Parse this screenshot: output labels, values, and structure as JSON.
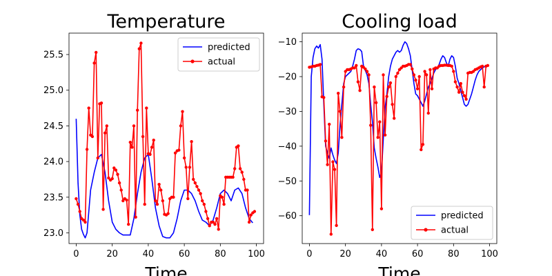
{
  "figure": {
    "background": "#ffffff"
  },
  "chart_data": [
    {
      "type": "line",
      "title": "Temperature",
      "xlabel": "Time",
      "ylabel": "",
      "xlim": [
        -4,
        104
      ],
      "ylim": [
        22.85,
        25.8
      ],
      "xticks": [
        0,
        20,
        40,
        60,
        80,
        100
      ],
      "yticks": [
        23.0,
        23.5,
        24.0,
        24.5,
        25.0,
        25.5
      ],
      "ytick_labels": [
        "23.0",
        "23.5",
        "24.0",
        "24.5",
        "25.0",
        "25.5"
      ],
      "legend": {
        "location": "upper right"
      },
      "series": [
        {
          "name": "predicted",
          "color": "#0000ff",
          "marker": "none",
          "x": [
            0,
            1,
            2,
            3,
            4,
            5,
            6,
            7,
            8,
            10,
            12,
            14,
            16,
            18,
            20,
            22,
            24,
            26,
            28,
            30,
            32,
            34,
            36,
            38,
            40,
            42,
            44,
            46,
            48,
            50,
            52,
            54,
            56,
            58,
            60,
            62,
            64,
            66,
            68,
            70,
            72,
            74,
            76,
            78,
            80,
            82,
            84,
            86,
            88,
            90,
            92,
            94,
            96,
            98
          ],
          "y": [
            24.6,
            23.7,
            23.25,
            23.05,
            22.98,
            22.93,
            23.0,
            23.3,
            23.6,
            23.85,
            24.05,
            24.1,
            23.85,
            23.45,
            23.15,
            23.05,
            23.0,
            22.97,
            22.97,
            22.97,
            23.2,
            23.55,
            23.85,
            24.05,
            24.1,
            23.75,
            23.35,
            23.1,
            22.95,
            22.93,
            22.93,
            23.0,
            23.2,
            23.45,
            23.6,
            23.6,
            23.55,
            23.45,
            23.3,
            23.18,
            23.15,
            23.1,
            23.18,
            23.35,
            23.55,
            23.6,
            23.55,
            23.45,
            23.6,
            23.63,
            23.55,
            23.35,
            23.2,
            23.14
          ]
        },
        {
          "name": "actual",
          "color": "#ff0000",
          "marker": "o",
          "x": [
            0,
            1,
            2,
            3,
            4,
            5,
            6,
            7,
            8,
            9,
            10,
            11,
            12,
            13,
            14,
            15,
            16,
            17,
            18,
            19,
            20,
            21,
            22,
            23,
            24,
            25,
            26,
            27,
            28,
            29,
            30,
            31,
            32,
            33,
            34,
            35,
            36,
            37,
            38,
            39,
            40,
            41,
            42,
            43,
            44,
            45,
            46,
            47,
            48,
            49,
            50,
            51,
            52,
            53,
            54,
            55,
            56,
            57,
            58,
            59,
            60,
            61,
            62,
            63,
            64,
            65,
            66,
            67,
            68,
            69,
            70,
            71,
            72,
            73,
            74,
            75,
            76,
            77,
            78,
            79,
            80,
            81,
            82,
            83,
            84,
            85,
            86,
            87,
            88,
            89,
            90,
            91,
            92,
            93,
            94,
            95,
            96,
            97,
            98,
            99
          ],
          "y": [
            23.48,
            23.4,
            23.3,
            23.2,
            23.18,
            23.15,
            24.17,
            24.75,
            24.37,
            24.35,
            25.38,
            25.53,
            24.05,
            24.81,
            24.82,
            23.33,
            24.4,
            24.5,
            23.77,
            23.74,
            23.76,
            23.91,
            23.88,
            23.82,
            23.7,
            23.6,
            23.45,
            23.48,
            23.46,
            23.12,
            24.27,
            24.2,
            24.5,
            23.22,
            24.72,
            25.58,
            25.66,
            24.35,
            23.4,
            24.75,
            24.11,
            24.1,
            24.2,
            24.3,
            23.45,
            23.4,
            23.68,
            23.6,
            23.45,
            23.26,
            23.25,
            23.27,
            23.48,
            23.5,
            23.5,
            24.12,
            24.15,
            24.16,
            24.5,
            24.7,
            24.05,
            23.92,
            23.48,
            23.92,
            24.28,
            23.75,
            23.7,
            23.65,
            23.6,
            23.55,
            23.45,
            23.4,
            23.3,
            23.2,
            23.1,
            23.15,
            23.15,
            23.12,
            23.2,
            23.05,
            23.52,
            23.5,
            23.4,
            23.78,
            23.78,
            23.78,
            23.78,
            23.78,
            23.9,
            24.2,
            24.22,
            23.9,
            23.85,
            23.75,
            23.6,
            23.6,
            23.15,
            23.25,
            23.28,
            23.3
          ]
        }
      ]
    },
    {
      "type": "line",
      "title": "Cooling load",
      "xlabel": "Time",
      "ylabel": "",
      "xlim": [
        -4,
        104
      ],
      "ylim": [
        -68,
        -7.5
      ],
      "xticks": [
        0,
        20,
        40,
        60,
        80,
        100
      ],
      "yticks": [
        -60,
        -50,
        -40,
        -30,
        -20,
        -10
      ],
      "ytick_labels": [
        "−60",
        "−50",
        "−40",
        "−30",
        "−20",
        "−10"
      ],
      "legend": {
        "location": "lower right"
      },
      "series": [
        {
          "name": "predicted",
          "color": "#0000ff",
          "marker": "none",
          "x": [
            0,
            1,
            2,
            3,
            4,
            5,
            6,
            7,
            8,
            9,
            10,
            11,
            12,
            13,
            14,
            15,
            16,
            17,
            18,
            19,
            20,
            21,
            22,
            23,
            24,
            25,
            26,
            27,
            28,
            29,
            30,
            31,
            32,
            33,
            34,
            35,
            36,
            37,
            38,
            39,
            40,
            41,
            42,
            43,
            44,
            45,
            46,
            47,
            48,
            49,
            50,
            51,
            52,
            53,
            54,
            55,
            56,
            57,
            58,
            59,
            60,
            61,
            62,
            63,
            64,
            65,
            66,
            67,
            68,
            69,
            70,
            71,
            72,
            73,
            74,
            75,
            76,
            77,
            78,
            79,
            80,
            81,
            82,
            83,
            84,
            85,
            86,
            87,
            88,
            89,
            90,
            91,
            92,
            93,
            94,
            95,
            96,
            97,
            98,
            99
          ],
          "y": [
            -59.8,
            -20.0,
            -14.5,
            -12.0,
            -11.2,
            -11.8,
            -10.8,
            -15.0,
            -28.0,
            -40.0,
            -42.0,
            -43.5,
            -40.5,
            -42.5,
            -44.0,
            -45.0,
            -42.0,
            -34.0,
            -28.0,
            -22.0,
            -20.0,
            -19.5,
            -19.0,
            -18.5,
            -17.0,
            -15.0,
            -12.5,
            -12.0,
            -12.2,
            -12.8,
            -17.0,
            -18.2,
            -19.5,
            -22.0,
            -28.0,
            -33.0,
            -40.5,
            -43.5,
            -46.0,
            -49.0,
            -47.5,
            -38.0,
            -29.0,
            -25.0,
            -20.0,
            -17.0,
            -15.0,
            -14.0,
            -13.0,
            -12.5,
            -13.0,
            -12.5,
            -11.0,
            -10.0,
            -10.5,
            -12.0,
            -14.0,
            -18.0,
            -22.0,
            -25.0,
            -25.5,
            -26.5,
            -27.5,
            -28.5,
            -27.0,
            -25.0,
            -23.0,
            -22.0,
            -20.5,
            -19.0,
            -18.0,
            -17.5,
            -16.5,
            -15.0,
            -14.0,
            -14.5,
            -16.0,
            -17.0,
            -15.0,
            -14.0,
            -14.5,
            -17.0,
            -20.5,
            -22.0,
            -24.0,
            -26.0,
            -28.0,
            -28.5,
            -28.0,
            -26.5,
            -25.0,
            -23.0,
            -21.0,
            -19.5,
            -18.5,
            -18.0,
            -17.5,
            -17.2,
            -17.0,
            -17.0
          ]
        },
        {
          "name": "actual",
          "color": "#ff0000",
          "marker": "o",
          "x": [
            0,
            1,
            2,
            3,
            4,
            5,
            6,
            7,
            8,
            9,
            10,
            11,
            12,
            13,
            14,
            15,
            16,
            17,
            18,
            19,
            20,
            21,
            22,
            23,
            24,
            25,
            26,
            27,
            28,
            29,
            30,
            31,
            32,
            33,
            34,
            35,
            36,
            37,
            38,
            39,
            40,
            41,
            42,
            43,
            44,
            45,
            46,
            47,
            48,
            49,
            50,
            51,
            52,
            53,
            54,
            55,
            56,
            57,
            58,
            59,
            60,
            61,
            62,
            63,
            64,
            65,
            66,
            67,
            68,
            69,
            70,
            71,
            72,
            73,
            74,
            75,
            76,
            77,
            78,
            79,
            80,
            81,
            82,
            83,
            84,
            85,
            86,
            87,
            88,
            89,
            90,
            91,
            92,
            93,
            94,
            95,
            96,
            97,
            98,
            99
          ],
          "y": [
            -17.3,
            -17.2,
            -17.0,
            -17.0,
            -16.8,
            -16.7,
            -16.5,
            -25.8,
            -26.0,
            -38.5,
            -45.3,
            -33.7,
            -65.3,
            -44.5,
            -46.7,
            -62.8,
            -24.8,
            -30.0,
            -37.5,
            -23.0,
            -18.5,
            -18.0,
            -18.0,
            -17.8,
            -17.5,
            -17.5,
            -16.8,
            -21.5,
            -24.0,
            -17.0,
            -17.3,
            -17.8,
            -18.5,
            -19.5,
            -34.0,
            -64.0,
            -23.0,
            -27.5,
            -37.5,
            -33.0,
            -58.0,
            -19.5,
            -36.8,
            -25.7,
            -23.0,
            -21.8,
            -28.0,
            -32.0,
            -20.0,
            -19.0,
            -18.0,
            -17.5,
            -17.0,
            -17.0,
            -16.8,
            -16.5,
            -16.5,
            -17.8,
            -19.5,
            -21.0,
            -23.5,
            -20.0,
            -41.0,
            -39.5,
            -18.5,
            -19.5,
            -30.5,
            -18.0,
            -23.5,
            -17.8,
            -17.5,
            -17.5,
            -17.0,
            -16.8,
            -16.8,
            -16.7,
            -16.7,
            -16.8,
            -16.8,
            -17.0,
            -18.5,
            -21.5,
            -23.0,
            -24.5,
            -22.0,
            -24.5,
            -25.5,
            -26.5,
            -19.0,
            -18.8,
            -18.8,
            -18.5,
            -18.0,
            -17.8,
            -17.5,
            -17.2,
            -17.0,
            -23.0,
            -17.0,
            -16.8
          ]
        }
      ]
    }
  ]
}
